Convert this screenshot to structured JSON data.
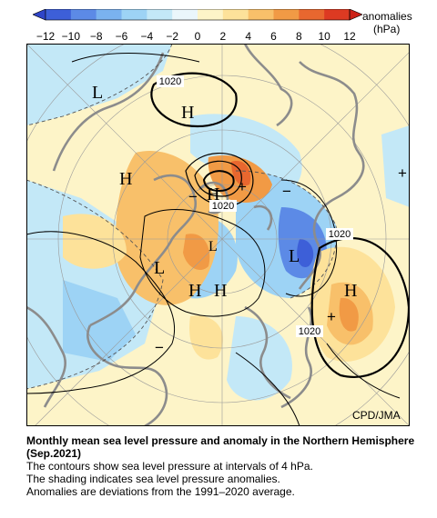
{
  "colorbar": {
    "ticks": [
      "−12",
      "−10",
      "−8",
      "−6",
      "−4",
      "−2",
      "0",
      "2",
      "4",
      "6",
      "8",
      "10",
      "12"
    ],
    "label_line1": "anomalies",
    "label_line2": "(hPa)",
    "colors": [
      "#3d5fd8",
      "#5c8ae6",
      "#7ab2ef",
      "#9dd3f5",
      "#c3e8f7",
      "#eaf6fb",
      "#fdf4c8",
      "#fde29a",
      "#f8c06a",
      "#f19a45",
      "#e8672f",
      "#dd3a22"
    ]
  },
  "map": {
    "credit": "CPD/JMA",
    "contour_labels": [
      "1020",
      "1020",
      "1020",
      "1020"
    ],
    "pressure_centers": [
      "L",
      "H",
      "H",
      "H",
      "L",
      "H",
      "H",
      "L",
      "H",
      "L"
    ],
    "anomaly_signs": [
      "+",
      "+",
      "+",
      "−",
      "−",
      "−"
    ]
  },
  "caption": {
    "title": "Monthly mean sea level pressure and anomaly in the Northern Hemisphere (Sep.2021)",
    "line1": "The contours show sea level pressure at intervals of 4 hPa.",
    "line2": "The shading indicates sea level pressure anomalies.",
    "line3": "Anomalies are deviations from the 1991–2020 average."
  }
}
